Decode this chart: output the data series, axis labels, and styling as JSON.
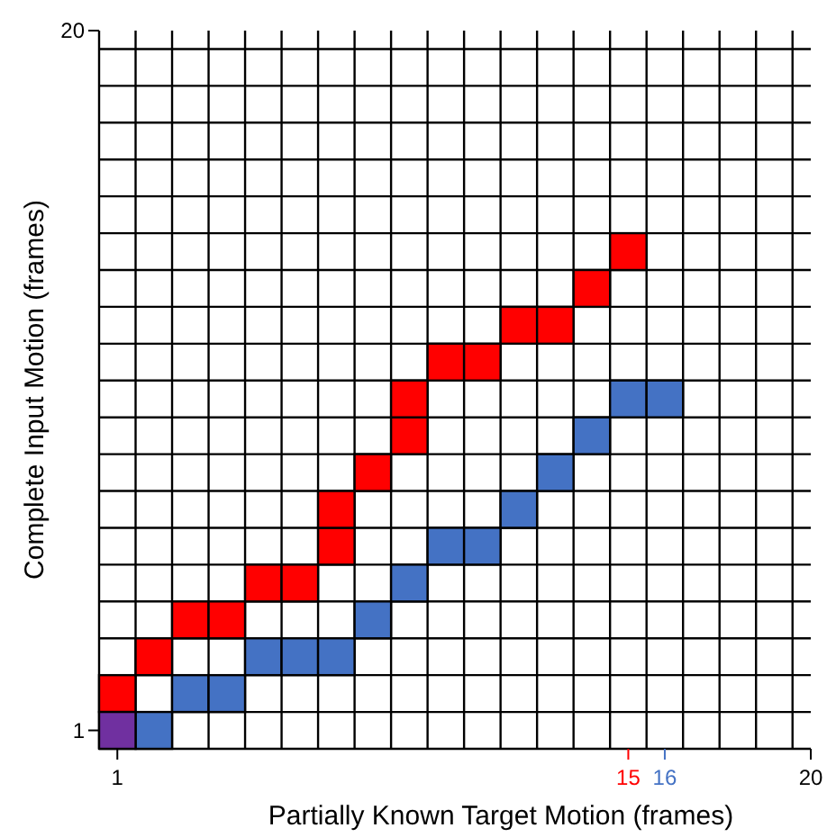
{
  "chart_data": {
    "type": "scatter",
    "xlabel": "Partially Known Target Motion (frames)",
    "ylabel": "Complete Input Motion (frames)",
    "xlim": [
      0.5,
      20
    ],
    "ylim": [
      0.5,
      20
    ],
    "xticks": [
      1,
      15,
      16,
      20
    ],
    "yticks": [
      1,
      20
    ],
    "grid": true,
    "marker": "square",
    "series": [
      {
        "color": "#ff0000",
        "x": [
          1,
          2,
          3,
          4,
          5,
          6,
          7,
          7,
          8,
          9,
          9,
          10,
          11,
          12,
          13,
          14,
          15
        ],
        "values": [
          2,
          3,
          4,
          4,
          5,
          5,
          6,
          7,
          8,
          9,
          10,
          11,
          11,
          12,
          12,
          13,
          14
        ]
      },
      {
        "color": "#4472c4",
        "x": [
          2,
          3,
          4,
          5,
          6,
          7,
          8,
          9,
          10,
          11,
          12,
          13,
          14,
          15,
          16
        ],
        "values": [
          1,
          2,
          2,
          3,
          3,
          3,
          4,
          5,
          6,
          6,
          7,
          8,
          9,
          10,
          10
        ]
      },
      {
        "color": "#7030a0",
        "x": [
          1
        ],
        "values": [
          1
        ]
      }
    ]
  }
}
